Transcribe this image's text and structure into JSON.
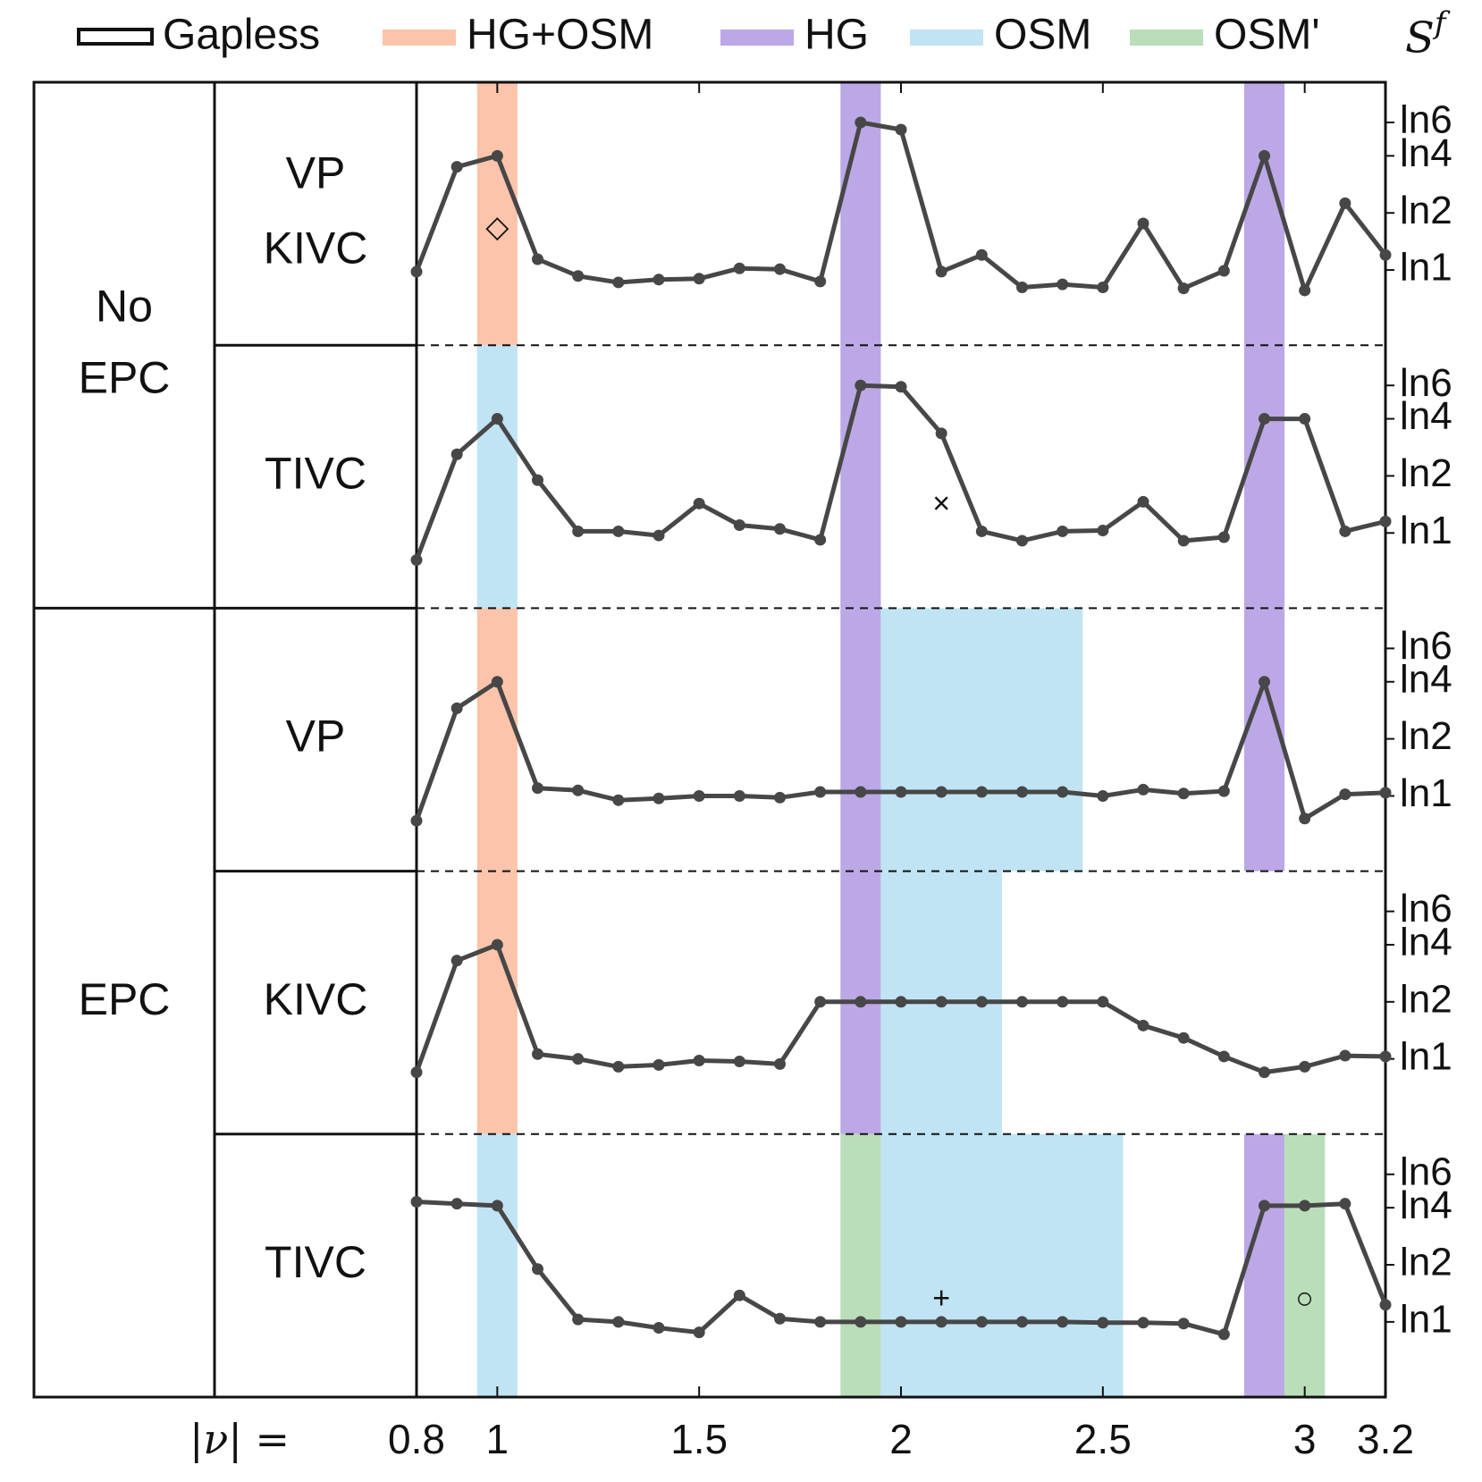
{
  "legend": {
    "items": [
      {
        "label": "Gapless",
        "kind": "box",
        "color": "#111111"
      },
      {
        "label": "HG+OSM",
        "kind": "band",
        "color": "#fcc4ab"
      },
      {
        "label": "HG",
        "kind": "band",
        "color": "#bca8e6"
      },
      {
        "label": "OSM",
        "kind": "band",
        "color": "#c0e4f4"
      },
      {
        "label": "OSM'",
        "kind": "band",
        "color": "#badeb9"
      }
    ],
    "ylabel_base": "S",
    "ylabel_sup": "f"
  },
  "row_labels": {
    "group_a": [
      "No",
      "EPC"
    ],
    "group_b": "EPC",
    "states": [
      [
        "VP",
        "KIVC"
      ],
      [
        "TIVC"
      ],
      [
        "VP"
      ],
      [
        "KIVC"
      ],
      [
        "TIVC"
      ]
    ]
  },
  "xaxis": {
    "label": "|ν| =",
    "ticks": [
      {
        "v": 0.8,
        "t": "0.8"
      },
      {
        "v": 1,
        "t": "1"
      },
      {
        "v": 1.5,
        "t": "1.5"
      },
      {
        "v": 2,
        "t": "2"
      },
      {
        "v": 2.5,
        "t": "2.5"
      },
      {
        "v": 3,
        "t": "3"
      },
      {
        "v": 3.2,
        "t": "3.2"
      }
    ],
    "top_ticks": [
      1,
      1.5,
      2,
      2.5,
      3
    ],
    "range": [
      0.8,
      3.2
    ]
  },
  "yaxis_ticks": [
    {
      "v": 1,
      "t": "ln1"
    },
    {
      "v": 2,
      "t": "ln2"
    },
    {
      "v": 4,
      "t": "ln4"
    },
    {
      "v": 6,
      "t": "ln6"
    }
  ],
  "colors": {
    "line": "#474747",
    "HG+OSM": "#fcc4ab",
    "HG": "#bca8e6",
    "OSM": "#c0e4f4",
    "OSM'": "#badeb9"
  },
  "chart_data": {
    "type": "line",
    "x": [
      0.8,
      0.9,
      1.0,
      1.1,
      1.2,
      1.3,
      1.4,
      1.5,
      1.6,
      1.7,
      1.8,
      1.9,
      2.0,
      2.1,
      2.2,
      2.3,
      2.4,
      2.5,
      2.6,
      2.7,
      2.8,
      2.9,
      3.0,
      3.1,
      3.2
    ],
    "xlim": [
      0.8,
      3.2
    ],
    "y_scale": "log of S^f, ticks ln1 ln2 ln4 ln6",
    "panels": [
      {
        "group": "No EPC",
        "state": "VP KIVC",
        "marker": {
          "symbol": "◇",
          "x": 1.0,
          "y": 1.65
        },
        "bands": [
          {
            "type": "HG+OSM",
            "x0": 0.95,
            "x1": 1.05
          },
          {
            "type": "HG",
            "x0": 1.85,
            "x1": 1.95
          },
          {
            "type": "HG",
            "x0": 2.85,
            "x1": 2.95
          }
        ],
        "values": [
          0.98,
          3.5,
          4.0,
          1.14,
          0.93,
          0.86,
          0.89,
          0.9,
          1.02,
          1.01,
          0.87,
          6.0,
          5.5,
          0.98,
          1.2,
          0.81,
          0.84,
          0.81,
          1.76,
          0.8,
          0.99,
          4.0,
          0.78,
          2.25,
          1.2
        ]
      },
      {
        "group": "No EPC",
        "state": "TIVC",
        "marker": {
          "symbol": "×",
          "x": 2.1,
          "y": 1.4
        },
        "bands": [
          {
            "type": "OSM",
            "x0": 0.95,
            "x1": 1.05
          },
          {
            "type": "HG",
            "x0": 1.85,
            "x1": 1.95
          },
          {
            "type": "HG",
            "x0": 2.85,
            "x1": 2.95
          }
        ],
        "values": [
          0.72,
          2.6,
          4.0,
          1.9,
          1.02,
          1.02,
          0.97,
          1.43,
          1.1,
          1.05,
          0.92,
          6.0,
          5.9,
          3.35,
          1.02,
          0.91,
          1.02,
          1.03,
          1.46,
          0.91,
          0.95,
          4.0,
          4.0,
          1.02,
          1.15
        ]
      },
      {
        "group": "EPC",
        "state": "VP",
        "bands": [
          {
            "type": "HG+OSM",
            "x0": 0.95,
            "x1": 1.05
          },
          {
            "type": "HG",
            "x0": 1.85,
            "x1": 1.95
          },
          {
            "type": "OSM",
            "x0": 1.95,
            "x1": 2.45
          },
          {
            "type": "HG",
            "x0": 2.85,
            "x1": 2.95
          }
        ],
        "values": [
          0.74,
          2.9,
          4.0,
          1.1,
          1.07,
          0.95,
          0.97,
          1.0,
          1.0,
          0.98,
          1.05,
          1.05,
          1.05,
          1.05,
          1.05,
          1.05,
          1.05,
          1.0,
          1.08,
          1.03,
          1.06,
          4.0,
          0.76,
          1.02,
          1.04
        ]
      },
      {
        "group": "EPC",
        "state": "KIVC",
        "bands": [
          {
            "type": "HG+OSM",
            "x0": 0.95,
            "x1": 1.05
          },
          {
            "type": "HG",
            "x0": 1.85,
            "x1": 1.95
          },
          {
            "type": "OSM",
            "x0": 1.95,
            "x1": 2.25
          }
        ],
        "values": [
          0.85,
          3.3,
          4.0,
          1.06,
          1.0,
          0.91,
          0.93,
          0.98,
          0.97,
          0.94,
          2.0,
          2.0,
          2.0,
          2.0,
          2.0,
          2.0,
          2.0,
          2.0,
          1.5,
          1.29,
          1.03,
          0.85,
          0.91,
          1.04,
          1.03
        ]
      },
      {
        "group": "EPC",
        "state": "TIVC",
        "marker": {
          "symbol": "+",
          "x": 2.1,
          "y": 1.3
        },
        "marker2": {
          "symbol": "○",
          "x": 3.0,
          "y": 1.3
        },
        "bands": [
          {
            "type": "OSM",
            "x0": 0.95,
            "x1": 1.05
          },
          {
            "type": "OSM'",
            "x0": 1.85,
            "x1": 1.95
          },
          {
            "type": "OSM",
            "x0": 1.95,
            "x1": 2.55
          },
          {
            "type": "HG",
            "x0": 2.85,
            "x1": 2.95
          },
          {
            "type": "OSM'",
            "x0": 2.95,
            "x1": 3.05
          }
        ],
        "values": [
          4.3,
          4.2,
          4.1,
          1.9,
          1.03,
          1.0,
          0.93,
          0.88,
          1.38,
          1.04,
          1.0,
          1.0,
          1.0,
          1.0,
          1.0,
          1.0,
          1.0,
          0.99,
          0.99,
          0.98,
          0.86,
          4.1,
          4.1,
          4.2,
          1.23
        ]
      }
    ]
  }
}
